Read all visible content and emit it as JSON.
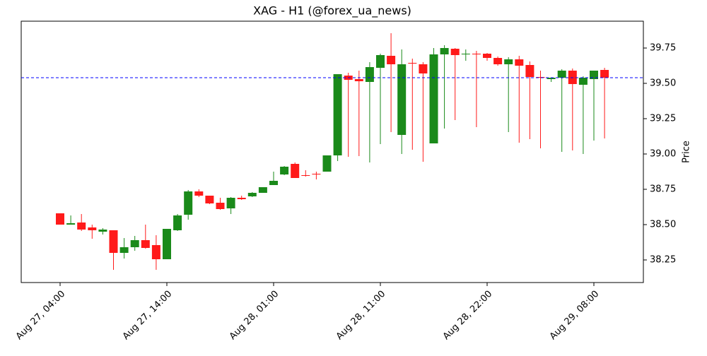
{
  "chart_data": {
    "type": "candlestick",
    "title": "XAG - H1 (@forex_ua_news)",
    "y_label": "Price",
    "categories": [
      "Aug 27, 04:00",
      null,
      null,
      null,
      null,
      null,
      null,
      null,
      null,
      null,
      "Aug 27, 14:00",
      null,
      null,
      null,
      null,
      null,
      null,
      null,
      null,
      null,
      "Aug 28, 01:00",
      null,
      null,
      null,
      null,
      null,
      null,
      null,
      null,
      null,
      "Aug 28, 11:00",
      null,
      null,
      null,
      null,
      null,
      null,
      null,
      null,
      null,
      "Aug 28, 22:00",
      null,
      null,
      null,
      null,
      null,
      null,
      null,
      null,
      null,
      "Aug 29, 08:00",
      null
    ],
    "open": [
      38.58,
      38.5,
      38.515,
      38.48,
      38.45,
      38.46,
      38.3,
      38.34,
      38.39,
      38.355,
      38.255,
      38.46,
      38.57,
      38.735,
      38.705,
      38.655,
      38.615,
      38.69,
      38.7,
      38.725,
      38.78,
      38.855,
      38.93,
      38.85,
      38.86,
      38.875,
      38.99,
      39.555,
      39.53,
      39.51,
      39.61,
      39.695,
      39.135,
      39.645,
      39.635,
      39.075,
      39.705,
      39.745,
      39.705,
      39.71,
      39.71,
      39.68,
      39.635,
      39.67,
      39.63,
      39.545,
      39.53,
      39.54,
      39.59,
      39.49,
      39.53,
      39.595
    ],
    "high": [
      38.58,
      38.565,
      38.575,
      38.5,
      38.475,
      38.46,
      38.405,
      38.42,
      38.5,
      38.425,
      38.47,
      38.575,
      38.745,
      38.75,
      38.705,
      38.69,
      38.695,
      38.705,
      38.73,
      38.765,
      38.875,
      38.915,
      38.94,
      38.885,
      38.875,
      38.99,
      39.565,
      39.575,
      39.59,
      39.65,
      39.71,
      39.855,
      39.74,
      39.675,
      39.65,
      39.75,
      39.77,
      39.75,
      39.74,
      39.73,
      39.715,
      39.69,
      39.685,
      39.695,
      39.655,
      39.59,
      39.54,
      39.6,
      39.605,
      39.55,
      39.59,
      39.61
    ],
    "low": [
      38.5,
      38.5,
      38.455,
      38.4,
      38.43,
      38.18,
      38.26,
      38.315,
      38.33,
      38.18,
      38.255,
      38.455,
      38.535,
      38.695,
      38.645,
      38.605,
      38.575,
      38.675,
      38.695,
      38.725,
      38.78,
      38.85,
      38.83,
      38.84,
      38.82,
      38.875,
      38.95,
      38.98,
      38.985,
      38.94,
      39.07,
      39.155,
      39.0,
      39.03,
      38.945,
      39.075,
      39.18,
      39.24,
      39.66,
      39.19,
      39.66,
      39.625,
      39.155,
      39.08,
      39.105,
      39.04,
      39.51,
      39.015,
      39.025,
      39.0,
      39.095,
      39.11
    ],
    "close": [
      38.5,
      38.51,
      38.465,
      38.46,
      38.465,
      38.3,
      38.34,
      38.39,
      38.335,
      38.255,
      38.47,
      38.565,
      38.735,
      38.705,
      38.65,
      38.61,
      38.69,
      38.68,
      38.725,
      38.765,
      38.81,
      38.91,
      38.83,
      38.845,
      38.855,
      38.99,
      39.565,
      39.525,
      39.515,
      39.615,
      39.7,
      39.635,
      39.635,
      39.64,
      39.57,
      39.705,
      39.75,
      39.7,
      39.71,
      39.705,
      39.68,
      39.635,
      39.67,
      39.625,
      39.545,
      39.54,
      39.54,
      39.59,
      39.495,
      39.54,
      39.59,
      39.54
    ],
    "up_color": "#1a8a1a",
    "down_color": "#ff1a1a",
    "hline": {
      "value": 39.54,
      "color": "#0000ff"
    },
    "ylim": [
      38.09,
      39.94
    ],
    "yticks": [
      38.25,
      {
        "value": 38.5,
        "label": "38.50"
      },
      38.75,
      {
        "value": 39.0,
        "label": "39.00"
      },
      39.25,
      {
        "value": 39.5,
        "label": "39.50"
      },
      39.75
    ]
  }
}
